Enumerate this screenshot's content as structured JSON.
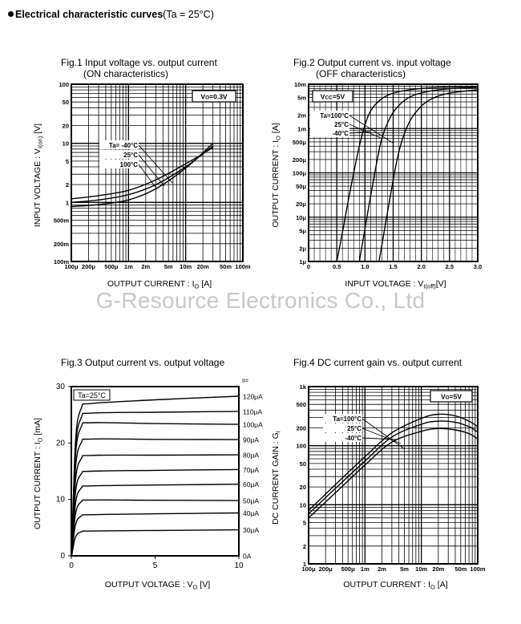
{
  "page": {
    "heading_bold": "Electrical characteristic curves",
    "heading_cond": "(Ta = 25°C)",
    "watermark": "G-Resource Electronics Co., Ltd"
  },
  "chart_data": [
    {
      "id": "fig1",
      "type": "line",
      "title_line1": "Fig.1 Input voltage vs. output current",
      "title_line2": "(ON characteristics)",
      "xlabel": "OUTPUT CURRENT : I",
      "xlabel_sub": "O",
      "xlabel_unit": " [A]",
      "ylabel": "INPUT VOLTAGE : V",
      "ylabel_sub": "I(on)",
      "ylabel_unit": " [V]",
      "x_scale": "log",
      "y_scale": "log",
      "xlim": [
        0.0001,
        0.1
      ],
      "ylim": [
        0.1,
        100
      ],
      "grid": true,
      "x_ticks": [
        {
          "v": 0.0001,
          "label": "100μ"
        },
        {
          "v": 0.0002,
          "label": "200μ"
        },
        {
          "v": 0.0005,
          "label": "500μ"
        },
        {
          "v": 0.001,
          "label": "1m"
        },
        {
          "v": 0.002,
          "label": "2m"
        },
        {
          "v": 0.005,
          "label": "5m"
        },
        {
          "v": 0.01,
          "label": "10m"
        },
        {
          "v": 0.02,
          "label": "20m"
        },
        {
          "v": 0.05,
          "label": "50m"
        },
        {
          "v": 0.1,
          "label": "100m"
        }
      ],
      "y_ticks": [
        {
          "v": 100,
          "label": "100"
        },
        {
          "v": 50,
          "label": "50"
        },
        {
          "v": 20,
          "label": "20"
        },
        {
          "v": 10,
          "label": "10"
        },
        {
          "v": 5,
          "label": "5"
        },
        {
          "v": 2,
          "label": "2"
        },
        {
          "v": 1,
          "label": "1"
        },
        {
          "v": 0.5,
          "label": "500m"
        },
        {
          "v": 0.2,
          "label": "200m"
        },
        {
          "v": 0.1,
          "label": "100m"
        }
      ],
      "condition": "VO=0.3V",
      "series_labels": [
        "Ta= -40°C",
        "25°C",
        "100°C"
      ],
      "series": [
        {
          "x": [
            0.0001,
            0.0003,
            0.001,
            0.003,
            0.01,
            0.03
          ],
          "y": [
            1.15,
            1.3,
            1.6,
            2.4,
            4.5,
            8.5
          ]
        },
        {
          "x": [
            0.0001,
            0.0003,
            0.001,
            0.003,
            0.01,
            0.03
          ],
          "y": [
            1.0,
            1.1,
            1.35,
            2.0,
            4.0,
            9.0
          ]
        },
        {
          "x": [
            0.0001,
            0.0003,
            0.001,
            0.003,
            0.01,
            0.03
          ],
          "y": [
            0.85,
            0.92,
            1.1,
            1.7,
            3.8,
            10.0
          ]
        }
      ]
    },
    {
      "id": "fig2",
      "type": "line",
      "title_line1": "Fig.2 Output current vs. input voltage",
      "title_line2": "(OFF characteristics)",
      "xlabel": "INPUT VOLTAGE : V",
      "xlabel_sub": "I(off)",
      "xlabel_unit": "[V]",
      "ylabel": "OUTPUT CURRENT : I",
      "ylabel_sub": "O",
      "ylabel_unit": " [A]",
      "x_scale": "linear",
      "y_scale": "log",
      "xlim": [
        0,
        3.0
      ],
      "ylim": [
        1e-06,
        0.01
      ],
      "grid": true,
      "x_ticks": [
        {
          "v": 0,
          "label": "0"
        },
        {
          "v": 0.5,
          "label": "0.5"
        },
        {
          "v": 1.0,
          "label": "1.0"
        },
        {
          "v": 1.5,
          "label": "1.5"
        },
        {
          "v": 2.0,
          "label": "2.0"
        },
        {
          "v": 2.5,
          "label": "2.5"
        },
        {
          "v": 3.0,
          "label": "3.0"
        }
      ],
      "y_ticks": [
        {
          "v": 0.01,
          "label": "10m"
        },
        {
          "v": 0.005,
          "label": "5m"
        },
        {
          "v": 0.002,
          "label": "2m"
        },
        {
          "v": 0.001,
          "label": "1m"
        },
        {
          "v": 0.0005,
          "label": "500μ"
        },
        {
          "v": 0.0002,
          "label": "200μ"
        },
        {
          "v": 0.0001,
          "label": "100μ"
        },
        {
          "v": 5e-05,
          "label": "50μ"
        },
        {
          "v": 2e-05,
          "label": "20μ"
        },
        {
          "v": 1e-05,
          "label": "10μ"
        },
        {
          "v": 5e-06,
          "label": "5μ"
        },
        {
          "v": 2e-06,
          "label": "2μ"
        },
        {
          "v": 1e-06,
          "label": "1μ"
        }
      ],
      "condition": "VCC=5V",
      "series_labels": [
        "Ta=100°C",
        "25°C",
        "-40°C"
      ],
      "series": [
        {
          "x": [
            0.5,
            0.6,
            0.7,
            0.8,
            0.9,
            1.0,
            1.1,
            1.25,
            1.4,
            1.6,
            1.9,
            2.3,
            3.0
          ],
          "y": [
            1e-06,
            4.5e-06,
            2.2e-05,
            0.0001,
            0.0004,
            0.0012,
            0.0025,
            0.0042,
            0.0056,
            0.0068,
            0.0078,
            0.0085,
            0.0089
          ]
        },
        {
          "x": [
            0.9,
            1.0,
            1.1,
            1.2,
            1.3,
            1.45,
            1.6,
            1.8,
            2.1,
            2.5,
            3.0
          ],
          "y": [
            1e-06,
            5.5e-06,
            3e-05,
            0.00015,
            0.0006,
            0.0018,
            0.0033,
            0.0052,
            0.0068,
            0.0079,
            0.0085
          ]
        },
        {
          "x": [
            1.25,
            1.35,
            1.45,
            1.55,
            1.65,
            1.8,
            2.0,
            2.2,
            2.5,
            3.0
          ],
          "y": [
            1e-06,
            5.5e-06,
            3e-05,
            0.00015,
            0.0005,
            0.0015,
            0.0032,
            0.0048,
            0.0063,
            0.0075
          ]
        }
      ]
    },
    {
      "id": "fig3",
      "type": "line",
      "title_line1": "Fig.3 Output current  vs. output voltage",
      "title_line2": "",
      "xlabel": "OUTPUT VOLTAGE : V",
      "xlabel_sub": "O",
      "xlabel_unit": " [V]",
      "ylabel": "OUTPUT CURRENT : I",
      "ylabel_sub": "O",
      "ylabel_unit": " [mA]",
      "x_scale": "linear",
      "y_scale": "linear",
      "xlim": [
        0,
        10
      ],
      "ylim": [
        0,
        30
      ],
      "grid": false,
      "x_ticks": [
        {
          "v": 0,
          "label": "0"
        },
        {
          "v": 5,
          "label": "5"
        },
        {
          "v": 10,
          "label": "10"
        }
      ],
      "y_ticks": [
        {
          "v": 0,
          "label": "0"
        },
        {
          "v": 10,
          "label": "10"
        },
        {
          "v": 20,
          "label": "20"
        },
        {
          "v": 30,
          "label": "30"
        }
      ],
      "condition": "Ta=25°C",
      "param_header": "II=",
      "series": [
        {
          "name": "120μA",
          "sat": 27.0,
          "end": 28.3
        },
        {
          "name": "110μA",
          "sat": 25.3,
          "end": 25.6
        },
        {
          "name": "100μA",
          "sat": 23.6,
          "end": 23.3
        },
        {
          "name": "90μA",
          "sat": 20.7,
          "end": 20.6
        },
        {
          "name": "80μA",
          "sat": 17.8,
          "end": 17.9
        },
        {
          "name": "70μA",
          "sat": 15.0,
          "end": 15.3
        },
        {
          "name": "60μA",
          "sat": 12.4,
          "end": 12.7
        },
        {
          "name": "50μA",
          "sat": 9.9,
          "end": 9.8
        },
        {
          "name": "40μA",
          "sat": 7.3,
          "end": 7.6
        },
        {
          "name": "30μA",
          "sat": 4.4,
          "end": 4.6
        },
        {
          "name": "0A",
          "sat": 0.0,
          "end": 0.0
        }
      ]
    },
    {
      "id": "fig4",
      "type": "line",
      "title_line1": "Fig.4 DC current gain vs. output current",
      "title_line2": "",
      "xlabel": "OUTPUT CURRENT : I",
      "xlabel_sub": "O",
      "xlabel_unit": " [A]",
      "ylabel": "DC CURRENT GAIN : G",
      "ylabel_sub": "I",
      "ylabel_unit": "",
      "x_scale": "log",
      "y_scale": "log",
      "xlim": [
        0.0001,
        0.1
      ],
      "ylim": [
        1,
        1000
      ],
      "grid": true,
      "x_ticks": [
        {
          "v": 0.0001,
          "label": "100μ"
        },
        {
          "v": 0.0002,
          "label": "200μ"
        },
        {
          "v": 0.0005,
          "label": "500μ"
        },
        {
          "v": 0.001,
          "label": "1m"
        },
        {
          "v": 0.002,
          "label": "2m"
        },
        {
          "v": 0.005,
          "label": "5m"
        },
        {
          "v": 0.01,
          "label": "10m"
        },
        {
          "v": 0.02,
          "label": "20m"
        },
        {
          "v": 0.05,
          "label": "50m"
        },
        {
          "v": 0.1,
          "label": "100m"
        }
      ],
      "y_ticks": [
        {
          "v": 1000,
          "label": "1k"
        },
        {
          "v": 500,
          "label": "500"
        },
        {
          "v": 200,
          "label": "200"
        },
        {
          "v": 100,
          "label": "100"
        },
        {
          "v": 50,
          "label": "50"
        },
        {
          "v": 20,
          "label": "20"
        },
        {
          "v": 10,
          "label": "10"
        },
        {
          "v": 5,
          "label": "5"
        },
        {
          "v": 2,
          "label": "2"
        },
        {
          "v": 1,
          "label": "1"
        }
      ],
      "condition": "VO=5V",
      "series_labels": [
        "Ta=100°C",
        "25°C",
        "-40°C"
      ],
      "series": [
        {
          "x": [
            0.0001,
            0.0003,
            0.001,
            0.003,
            0.01,
            0.02,
            0.04,
            0.07,
            0.1
          ],
          "y": [
            8,
            22,
            65,
            165,
            290,
            340,
            320,
            260,
            210
          ]
        },
        {
          "x": [
            0.0001,
            0.0003,
            0.001,
            0.003,
            0.01,
            0.02,
            0.04,
            0.07,
            0.1
          ],
          "y": [
            7,
            19,
            55,
            140,
            230,
            260,
            250,
            210,
            170
          ]
        },
        {
          "x": [
            0.0001,
            0.0003,
            0.001,
            0.003,
            0.01,
            0.02,
            0.04,
            0.07,
            0.1
          ],
          "y": [
            6,
            16,
            47,
            115,
            175,
            195,
            185,
            160,
            130
          ]
        }
      ]
    }
  ]
}
